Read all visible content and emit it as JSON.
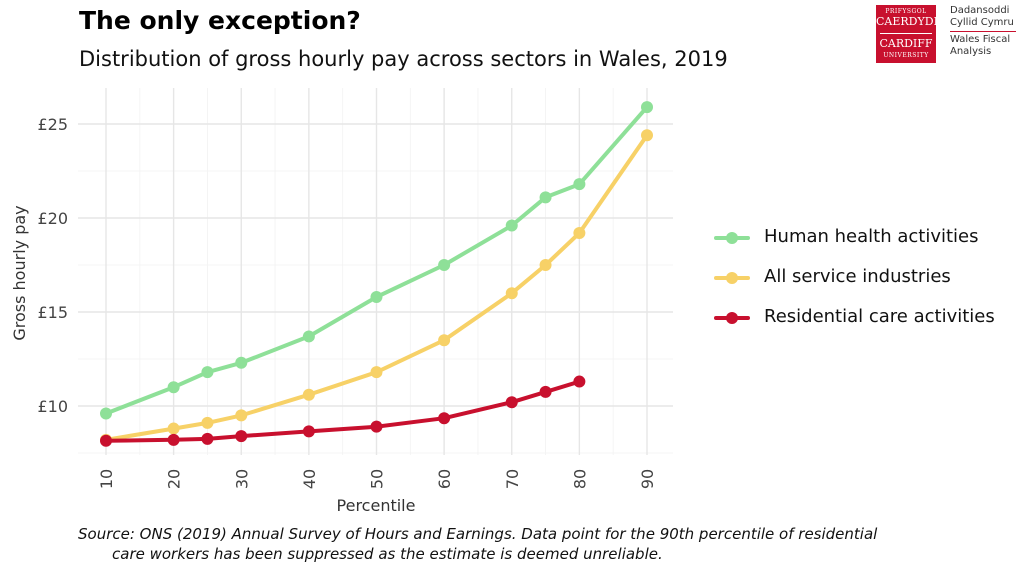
{
  "header": {
    "title": "The only exception?",
    "subtitle": "Distribution of gross hourly pay across sectors in Wales, 2019"
  },
  "logo": {
    "box_line1": "PRIFYSGOL",
    "box_line2": "CAERDYDD",
    "box_line3": "CARDIFF",
    "box_line4": "UNIVERSITY",
    "text_line1": "Dadansoddi",
    "text_line2": "Cyllid Cymru",
    "text_line3": "Wales Fiscal",
    "text_line4": "Analysis",
    "color": "#c8102e"
  },
  "chart_data": {
    "type": "line",
    "title": "The only exception?",
    "subtitle": "Distribution of gross hourly pay across sectors in Wales, 2019",
    "xlabel": "Percentile",
    "ylabel": "Gross hourly pay",
    "x_ticks": [
      10,
      20,
      30,
      40,
      50,
      60,
      70,
      80,
      90
    ],
    "y_ticks": [
      10,
      15,
      20,
      25
    ],
    "y_tick_labels": [
      "£10",
      "£15",
      "£20",
      "£25"
    ],
    "xlim": [
      10,
      90
    ],
    "ylim": [
      7.5,
      26.5
    ],
    "grid": true,
    "legend_position": "right",
    "series": [
      {
        "name": "Human health activities",
        "color": "#8ee098",
        "x": [
          10,
          20,
          25,
          30,
          40,
          50,
          60,
          70,
          75,
          80,
          90
        ],
        "y": [
          9.6,
          11.0,
          11.8,
          12.3,
          13.7,
          15.8,
          17.5,
          19.6,
          21.1,
          21.8,
          25.9
        ]
      },
      {
        "name": "All service industries",
        "color": "#f7d167",
        "x": [
          10,
          20,
          25,
          30,
          40,
          50,
          60,
          70,
          75,
          80,
          90
        ],
        "y": [
          8.2,
          8.8,
          9.1,
          9.5,
          10.6,
          11.8,
          13.5,
          16.0,
          17.5,
          19.2,
          24.4
        ]
      },
      {
        "name": "Residential care activities",
        "color": "#c8102e",
        "x": [
          10,
          20,
          25,
          30,
          40,
          50,
          60,
          70,
          75,
          80
        ],
        "y": [
          8.15,
          8.2,
          8.25,
          8.4,
          8.65,
          8.9,
          9.35,
          10.2,
          10.75,
          11.3
        ]
      }
    ]
  },
  "caption": {
    "line1": "Source: ONS (2019) Annual Survey of Hours and Earnings. Data point for the 90th percentile of residential",
    "line2": "care workers has been suppressed as the estimate is deemed unreliable."
  }
}
